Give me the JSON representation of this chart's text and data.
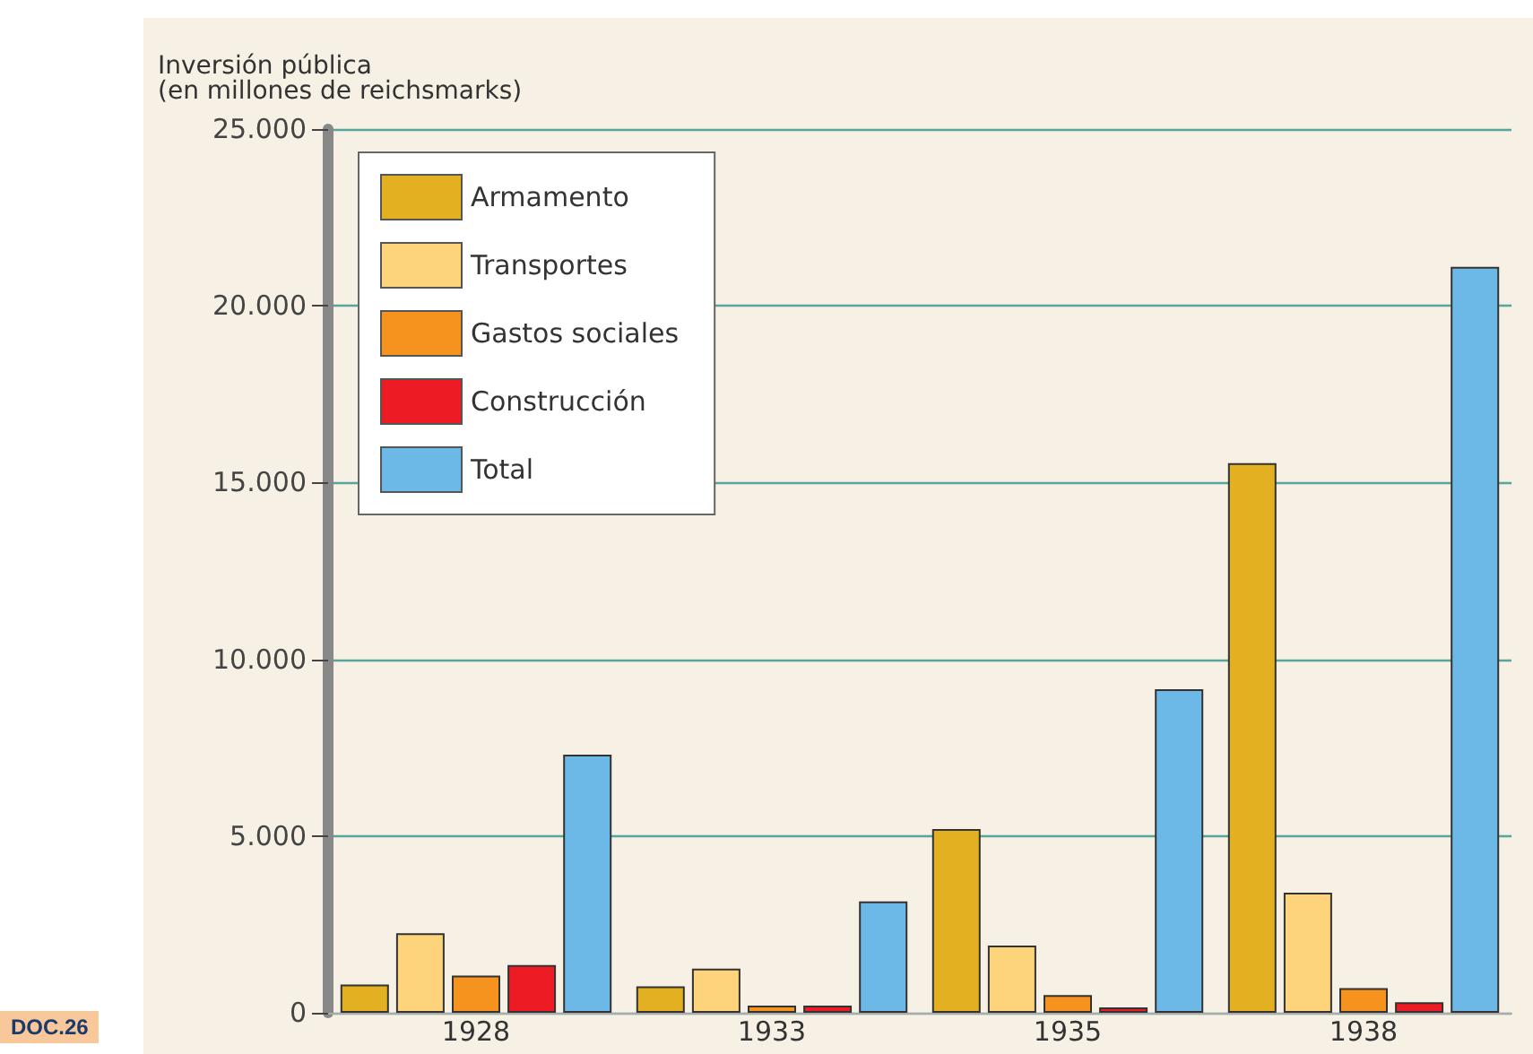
{
  "chart_data": {
    "type": "bar",
    "ylabel": "Inversión pública\n(en millones de reichsmarks)",
    "categories": [
      "1928",
      "1933",
      "1935",
      "1938"
    ],
    "series": [
      {
        "name": "Armamento",
        "color": "#e3b021",
        "values": [
          800,
          750,
          5200,
          15550
        ]
      },
      {
        "name": "Transportes",
        "color": "#fdd47c",
        "values": [
          2250,
          1250,
          1900,
          3400
        ]
      },
      {
        "name": "Gastos sociales",
        "color": "#f6921e",
        "values": [
          1050,
          200,
          500,
          700
        ]
      },
      {
        "name": "Construcción",
        "color": "#ed1c24",
        "values": [
          1350,
          200,
          150,
          300
        ]
      },
      {
        "name": "Total",
        "color": "#6cb8e6",
        "values": [
          7300,
          3150,
          9150,
          21100
        ]
      }
    ],
    "ylim": [
      0,
      25000
    ],
    "yticks": [
      {
        "value": 0,
        "label": "0"
      },
      {
        "value": 5000,
        "label": "5.000"
      },
      {
        "value": 10000,
        "label": "10.000"
      },
      {
        "value": 15000,
        "label": "15.000"
      },
      {
        "value": 20000,
        "label": "20.000"
      },
      {
        "value": 25000,
        "label": "25.000"
      }
    ],
    "grid": "y",
    "legend": "top left",
    "annotations": [
      "DOC.26"
    ]
  }
}
